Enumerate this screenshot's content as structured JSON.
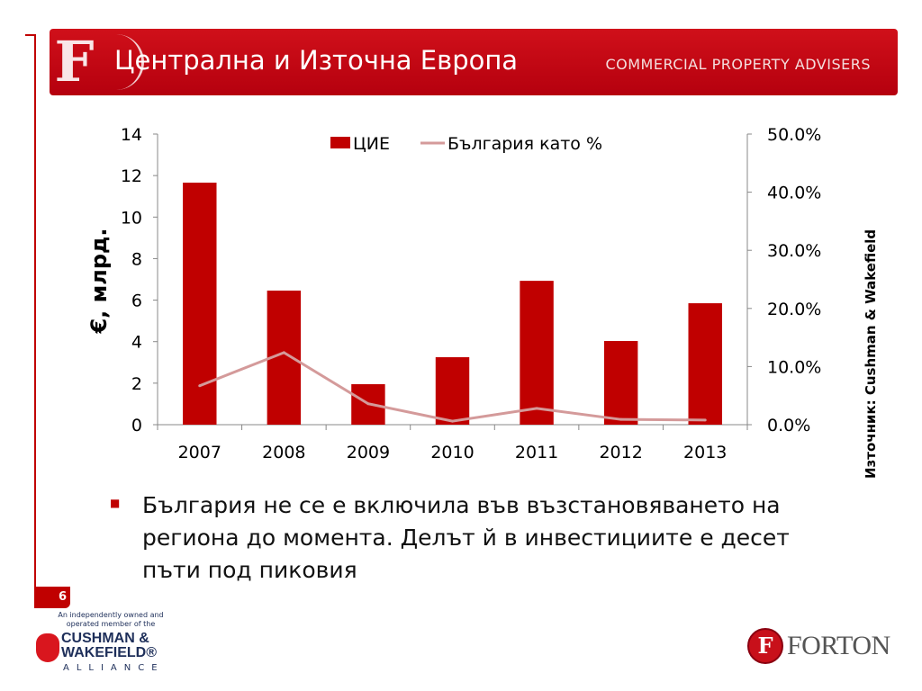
{
  "header": {
    "title": "Централна и Източна Европа",
    "subtitle": "COMMERCIAL PROPERTY ADVISERS",
    "logo_letter": "F"
  },
  "source": "Източник: Cushman & Wakefield",
  "bullet": "България не се е включила във възстановяването на региона до момента. Делът й в инвестициите е десет пъти под пиковия",
  "page_number": "6",
  "footer": {
    "cw_tagline": "An independently owned and operated member of the",
    "cw_name_1": "CUSHMAN &",
    "cw_name_2": "WAKEFIELD®",
    "cw_alliance": "ALLIANCE",
    "forton_letter": "F",
    "forton_name": "FORTON"
  },
  "colors": {
    "accent": "#c00000",
    "line": "#d49a9a"
  },
  "chart_data": {
    "type": "bar",
    "categories": [
      "2007",
      "2008",
      "2009",
      "2010",
      "2011",
      "2012",
      "2013"
    ],
    "series": [
      {
        "name": "ЦИЕ",
        "type": "bar",
        "axis": "left",
        "values": [
          11.66,
          6.46,
          1.95,
          3.25,
          6.93,
          4.03,
          5.85
        ]
      },
      {
        "name": "България като %",
        "type": "line",
        "axis": "right",
        "values": [
          6.7,
          12.4,
          3.6,
          0.6,
          2.8,
          0.9,
          0.8
        ]
      }
    ],
    "ylabel": "€, млрд.",
    "ylim": [
      0,
      14
    ],
    "yticks": [
      "0",
      "2",
      "4",
      "6",
      "8",
      "10",
      "12",
      "14"
    ],
    "y2lim": [
      0,
      50
    ],
    "y2ticks": [
      "0.0%",
      "10.0%",
      "20.0%",
      "30.0%",
      "40.0%",
      "50.0%"
    ],
    "legend": "top-center",
    "grid": false
  }
}
